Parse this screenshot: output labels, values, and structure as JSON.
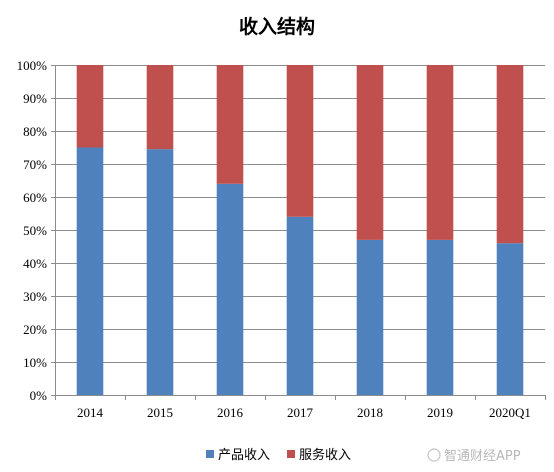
{
  "chart_data": {
    "type": "bar",
    "stacked": true,
    "title": "收入结构",
    "xlabel": "",
    "ylabel": "",
    "categories": [
      "2014",
      "2015",
      "2016",
      "2017",
      "2018",
      "2019",
      "2020Q1"
    ],
    "series": [
      {
        "name": "产品收入",
        "color": "#4f81bd",
        "values": [
          75,
          74.5,
          64,
          54,
          47,
          47,
          46
        ]
      },
      {
        "name": "服务收入",
        "color": "#c0504d",
        "values": [
          25,
          25.5,
          36,
          46,
          53,
          53,
          54
        ]
      }
    ],
    "ylim": [
      0,
      100
    ],
    "y_ticks": [
      0,
      10,
      20,
      30,
      40,
      50,
      60,
      70,
      80,
      90,
      100
    ],
    "y_tick_labels": [
      "0%",
      "10%",
      "20%",
      "30%",
      "40%",
      "50%",
      "60%",
      "70%",
      "80%",
      "90%",
      "100%"
    ],
    "grid": true,
    "legend_position": "bottom"
  },
  "watermark": "智通财经APP"
}
